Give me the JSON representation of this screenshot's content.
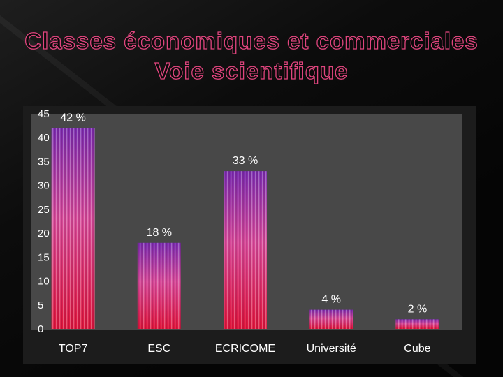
{
  "slide": {
    "title_line1": "Classes économiques et commerciales",
    "title_line2": "Voie scientifique"
  },
  "chart_data": {
    "type": "bar",
    "categories": [
      "TOP7",
      "ESC",
      "ECRICOME",
      "Université",
      "Cube"
    ],
    "values": [
      42,
      18,
      33,
      4,
      2
    ],
    "data_labels": [
      "42 %",
      "18 %",
      "33 %",
      "4 %",
      "2 %"
    ],
    "ylim": [
      0,
      45
    ],
    "yticks": [
      0,
      5,
      10,
      15,
      20,
      25,
      30,
      35,
      40,
      45
    ],
    "grid": false,
    "legend": "none",
    "colors": {
      "plot_background": "#484848",
      "bar_top": "#7a2bb0",
      "bar_mid": "#d84a9a",
      "bar_bottom": "#e0143a"
    }
  }
}
